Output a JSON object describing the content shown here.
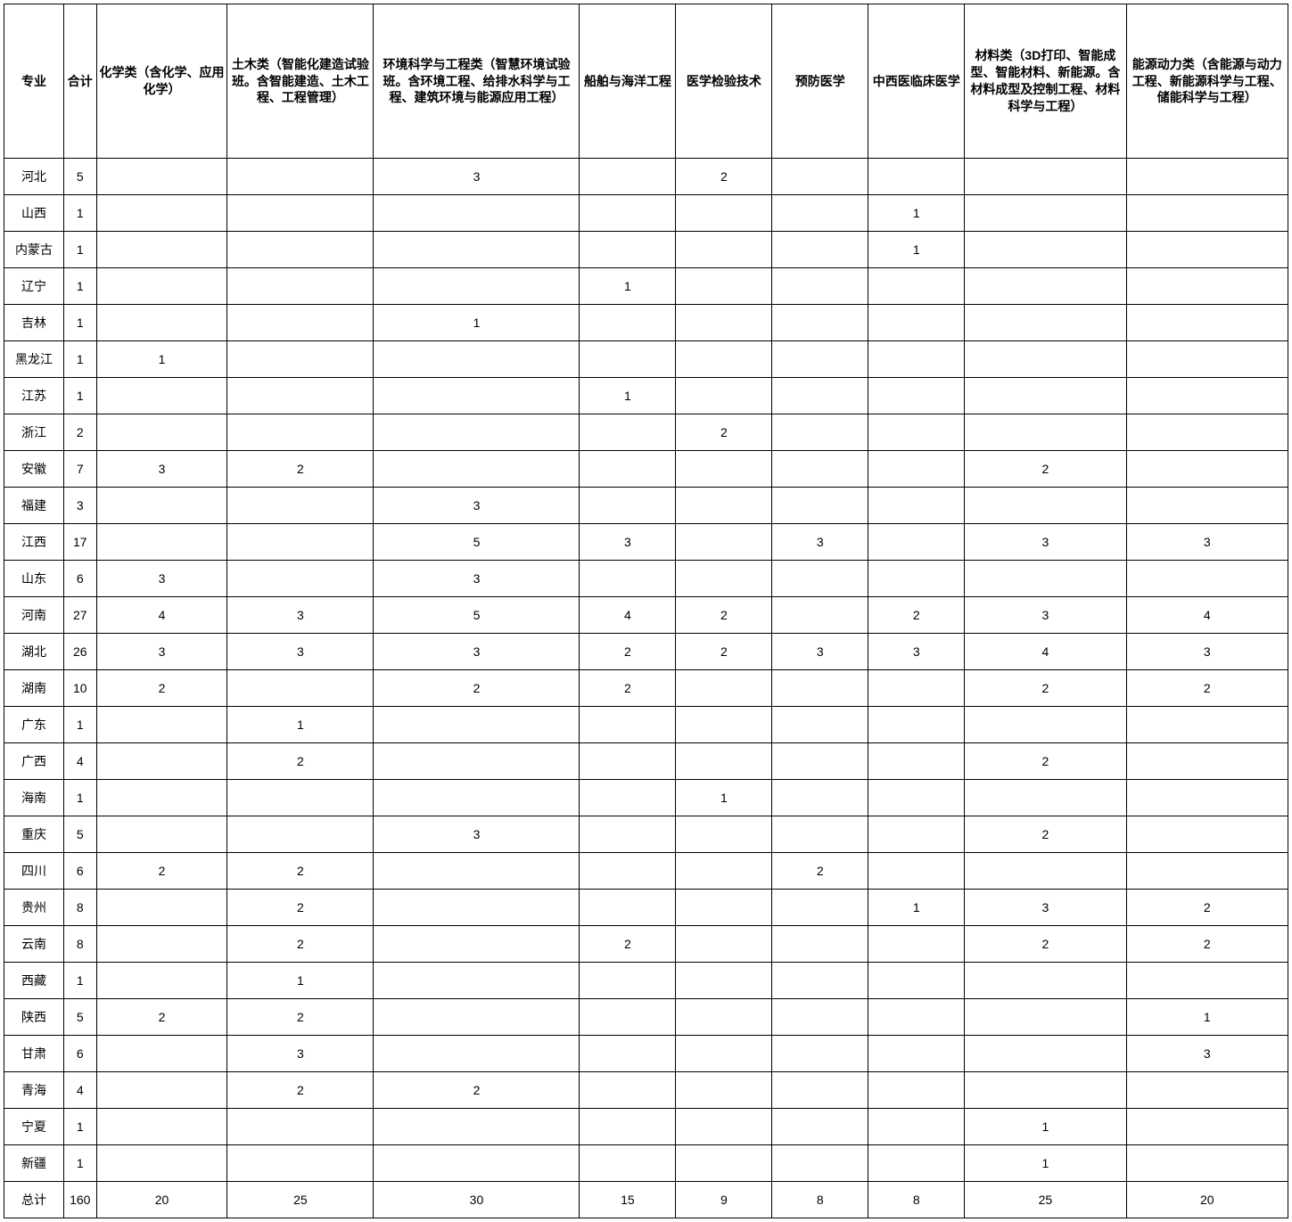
{
  "columns": [
    {
      "label": "专业",
      "class": "col-province"
    },
    {
      "label": "合计",
      "class": "col-total"
    },
    {
      "label": "化学类（含化学、应用化学）",
      "class": "col-c2"
    },
    {
      "label": "土木类（智能化建造试验班。含智能建造、土木工程、工程管理）",
      "class": "col-c3"
    },
    {
      "label": "环境科学与工程类（智慧环境试验班。含环境工程、给排水科学与工程、建筑环境与能源应用工程）",
      "class": "col-c4"
    },
    {
      "label": "船舶与海洋工程",
      "class": "col-c5"
    },
    {
      "label": "医学检验技术",
      "class": "col-c6"
    },
    {
      "label": "预防医学",
      "class": "col-c7"
    },
    {
      "label": "中西医临床医学",
      "class": "col-c8"
    },
    {
      "label": "材料类（3D打印、智能成型、智能材料、新能源。含材料成型及控制工程、材料科学与工程）",
      "class": "col-c9"
    },
    {
      "label": "能源动力类（含能源与动力工程、新能源科学与工程、储能科学与工程）",
      "class": "col-c10"
    }
  ],
  "rows": [
    [
      "河北",
      "5",
      "",
      "",
      "3",
      "",
      "2",
      "",
      "",
      "",
      ""
    ],
    [
      "山西",
      "1",
      "",
      "",
      "",
      "",
      "",
      "",
      "1",
      "",
      ""
    ],
    [
      "内蒙古",
      "1",
      "",
      "",
      "",
      "",
      "",
      "",
      "1",
      "",
      ""
    ],
    [
      "辽宁",
      "1",
      "",
      "",
      "",
      "1",
      "",
      "",
      "",
      "",
      ""
    ],
    [
      "吉林",
      "1",
      "",
      "",
      "1",
      "",
      "",
      "",
      "",
      "",
      ""
    ],
    [
      "黑龙江",
      "1",
      "1",
      "",
      "",
      "",
      "",
      "",
      "",
      "",
      ""
    ],
    [
      "江苏",
      "1",
      "",
      "",
      "",
      "1",
      "",
      "",
      "",
      "",
      ""
    ],
    [
      "浙江",
      "2",
      "",
      "",
      "",
      "",
      "2",
      "",
      "",
      "",
      ""
    ],
    [
      "安徽",
      "7",
      "3",
      "2",
      "",
      "",
      "",
      "",
      "",
      "2",
      ""
    ],
    [
      "福建",
      "3",
      "",
      "",
      "3",
      "",
      "",
      "",
      "",
      "",
      ""
    ],
    [
      "江西",
      "17",
      "",
      "",
      "5",
      "3",
      "",
      "3",
      "",
      "3",
      "3"
    ],
    [
      "山东",
      "6",
      "3",
      "",
      "3",
      "",
      "",
      "",
      "",
      "",
      ""
    ],
    [
      "河南",
      "27",
      "4",
      "3",
      "5",
      "4",
      "2",
      "",
      "2",
      "3",
      "4"
    ],
    [
      "湖北",
      "26",
      "3",
      "3",
      "3",
      "2",
      "2",
      "3",
      "3",
      "4",
      "3"
    ],
    [
      "湖南",
      "10",
      "2",
      "",
      "2",
      "2",
      "",
      "",
      "",
      "2",
      "2"
    ],
    [
      "广东",
      "1",
      "",
      "1",
      "",
      "",
      "",
      "",
      "",
      "",
      ""
    ],
    [
      "广西",
      "4",
      "",
      "2",
      "",
      "",
      "",
      "",
      "",
      "2",
      ""
    ],
    [
      "海南",
      "1",
      "",
      "",
      "",
      "",
      "1",
      "",
      "",
      "",
      ""
    ],
    [
      "重庆",
      "5",
      "",
      "",
      "3",
      "",
      "",
      "",
      "",
      "2",
      ""
    ],
    [
      "四川",
      "6",
      "2",
      "2",
      "",
      "",
      "",
      "2",
      "",
      "",
      ""
    ],
    [
      "贵州",
      "8",
      "",
      "2",
      "",
      "",
      "",
      "",
      "1",
      "3",
      "2"
    ],
    [
      "云南",
      "8",
      "",
      "2",
      "",
      "2",
      "",
      "",
      "",
      "2",
      "2"
    ],
    [
      "西藏",
      "1",
      "",
      "1",
      "",
      "",
      "",
      "",
      "",
      "",
      ""
    ],
    [
      "陕西",
      "5",
      "2",
      "2",
      "",
      "",
      "",
      "",
      "",
      "",
      "1"
    ],
    [
      "甘肃",
      "6",
      "",
      "3",
      "",
      "",
      "",
      "",
      "",
      "",
      "3"
    ],
    [
      "青海",
      "4",
      "",
      "2",
      "2",
      "",
      "",
      "",
      "",
      "",
      ""
    ],
    [
      "宁夏",
      "1",
      "",
      "",
      "",
      "",
      "",
      "",
      "",
      "1",
      ""
    ],
    [
      "新疆",
      "1",
      "",
      "",
      "",
      "",
      "",
      "",
      "",
      "1",
      ""
    ],
    [
      "总计",
      "160",
      "20",
      "25",
      "30",
      "15",
      "9",
      "8",
      "8",
      "25",
      "20"
    ]
  ]
}
